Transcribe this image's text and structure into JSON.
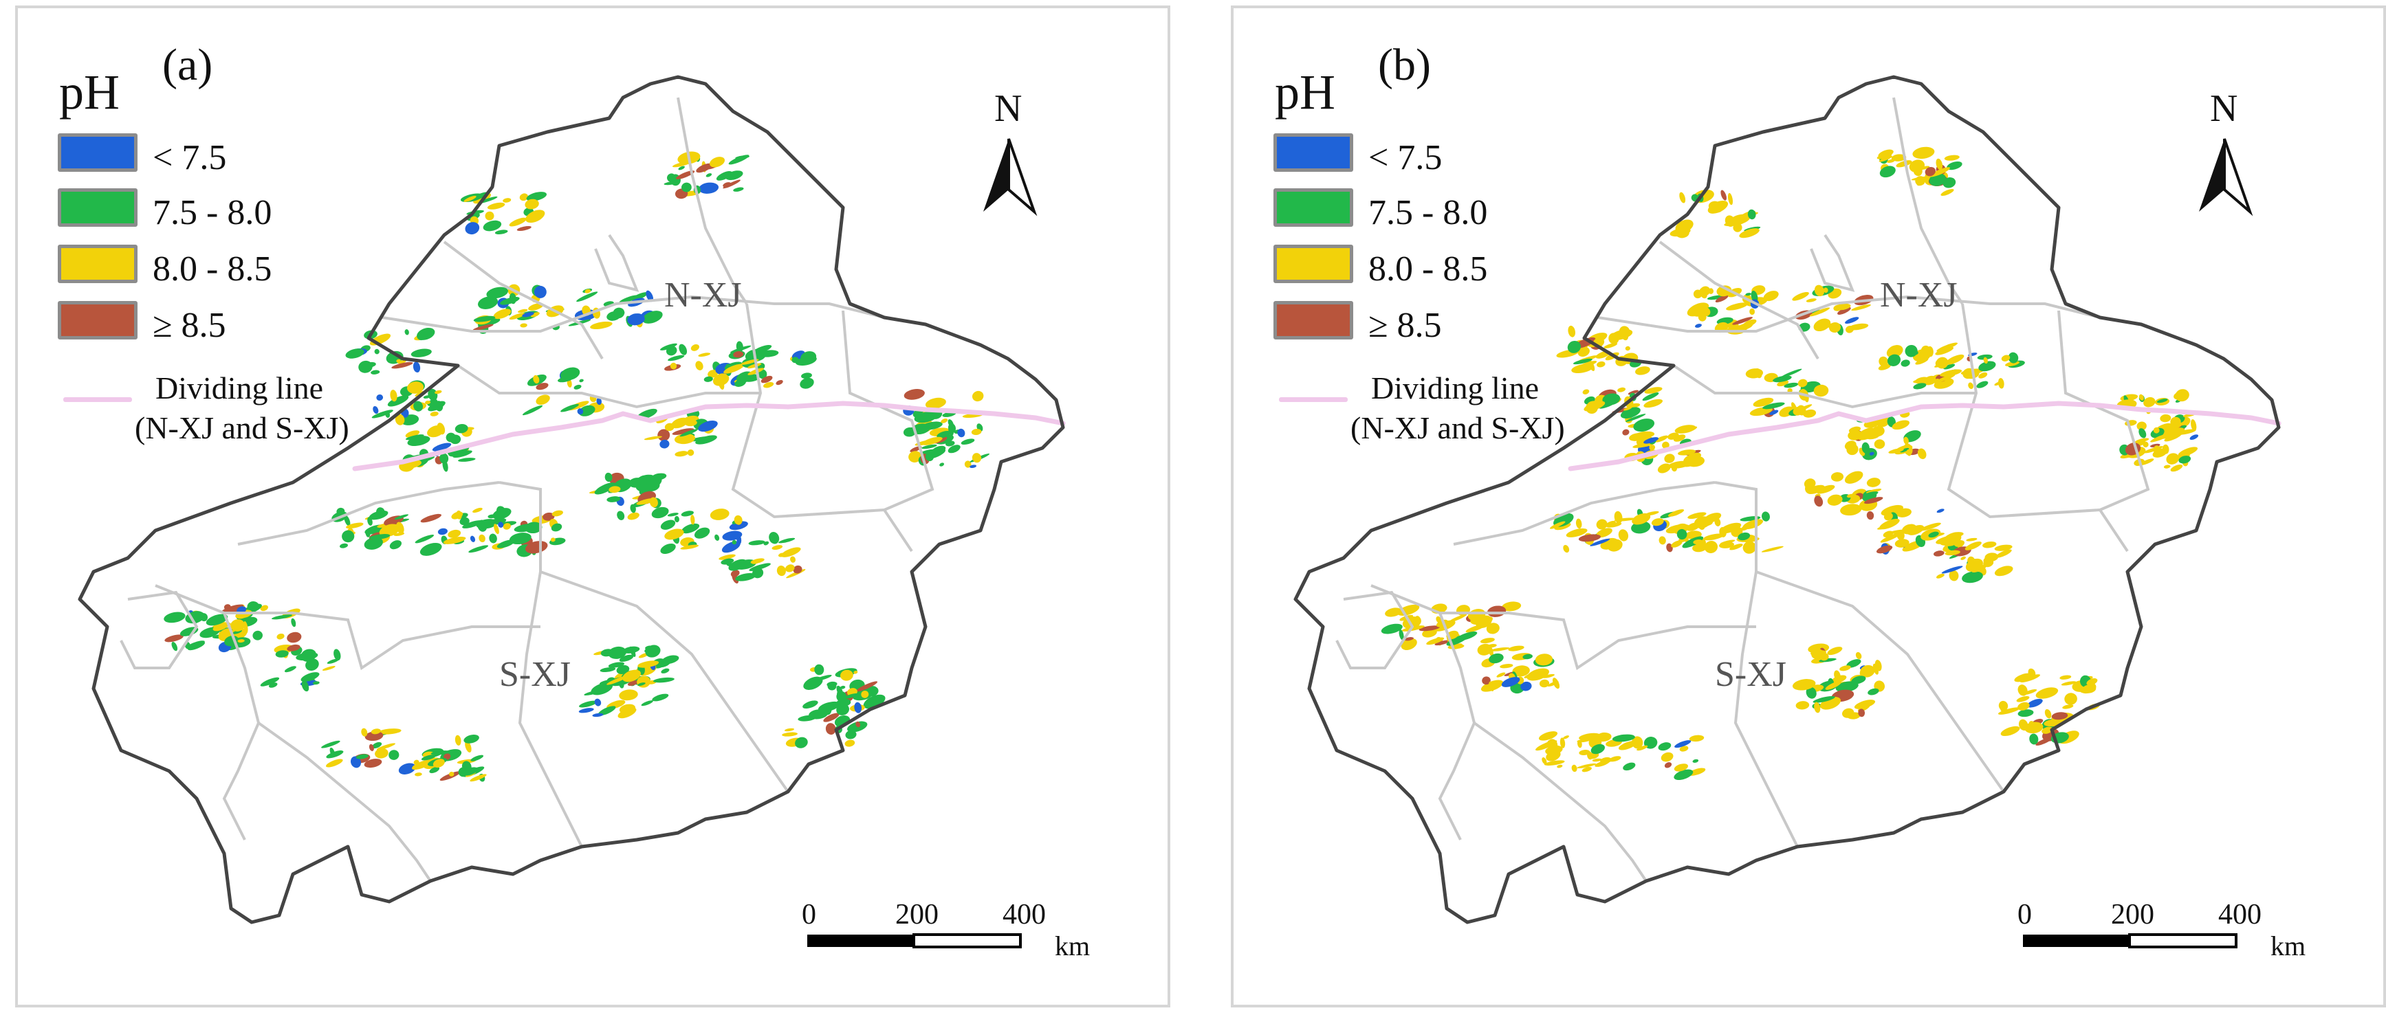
{
  "legend": {
    "title": "pH",
    "classes": [
      {
        "label": "< 7.5",
        "color": "#1f63d8"
      },
      {
        "label": "7.5 - 8.0",
        "color": "#22b84a"
      },
      {
        "label": "8.0 - 8.5",
        "color": "#f2d20a"
      },
      {
        "label": "≥ 8.5",
        "color": "#b8553c"
      }
    ],
    "dividing_line": {
      "label_line1": "Dividing line",
      "label_line2": "(N-XJ and S-XJ)",
      "color": "#f0c8ea"
    }
  },
  "regions": {
    "north": "N-XJ",
    "south": "S-XJ"
  },
  "north_arrow": {
    "label": "N"
  },
  "scale_bar": {
    "ticks": [
      "0",
      "200",
      "400"
    ],
    "unit": "km"
  },
  "panels": [
    {
      "label": "(a)",
      "distribution": "green and yellow dominant, blue patches in the north, red patches in the west and south"
    },
    {
      "label": "(b)",
      "distribution": "yellow dominant, fewer green patches, small red patches"
    }
  ],
  "colors": {
    "outline": "#444444",
    "internal_boundaries": "#c8c8c8",
    "frame": "#d6d6d6"
  }
}
